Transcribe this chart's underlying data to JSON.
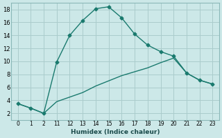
{
  "xlabel": "Humidex (Indice chaleur)",
  "background_color": "#cce8e8",
  "line_color": "#1a7a6e",
  "grid_color": "#aacccc",
  "ylim": [
    1,
    19
  ],
  "yticks": [
    2,
    4,
    6,
    8,
    10,
    12,
    14,
    16,
    18
  ],
  "x_indices": [
    0,
    1,
    2,
    3,
    4,
    5,
    6,
    7,
    8,
    9,
    10,
    11,
    12,
    13,
    14,
    15
  ],
  "x_labels": [
    "0",
    "1",
    "2",
    "11",
    "12",
    "13",
    "14",
    "15",
    "16",
    "17",
    "18",
    "19",
    "20",
    "21",
    "22",
    "23"
  ],
  "line1_y": [
    3.5,
    2.8,
    2.0,
    9.9,
    14.0,
    16.3,
    18.1,
    18.4,
    16.7,
    14.2,
    12.5,
    11.5,
    10.8,
    8.2,
    7.1,
    6.5
  ],
  "line2_y": [
    3.5,
    2.8,
    2.0,
    3.8,
    4.5,
    5.2,
    6.2,
    7.0,
    7.8,
    8.4,
    9.0,
    9.8,
    10.5,
    8.2,
    7.1,
    6.5
  ],
  "marker": "D",
  "markersize": 2.5,
  "linewidth": 1.0,
  "xlabel_fontsize": 6.5,
  "tick_fontsize": 5.5,
  "ytick_fontsize": 6.0
}
